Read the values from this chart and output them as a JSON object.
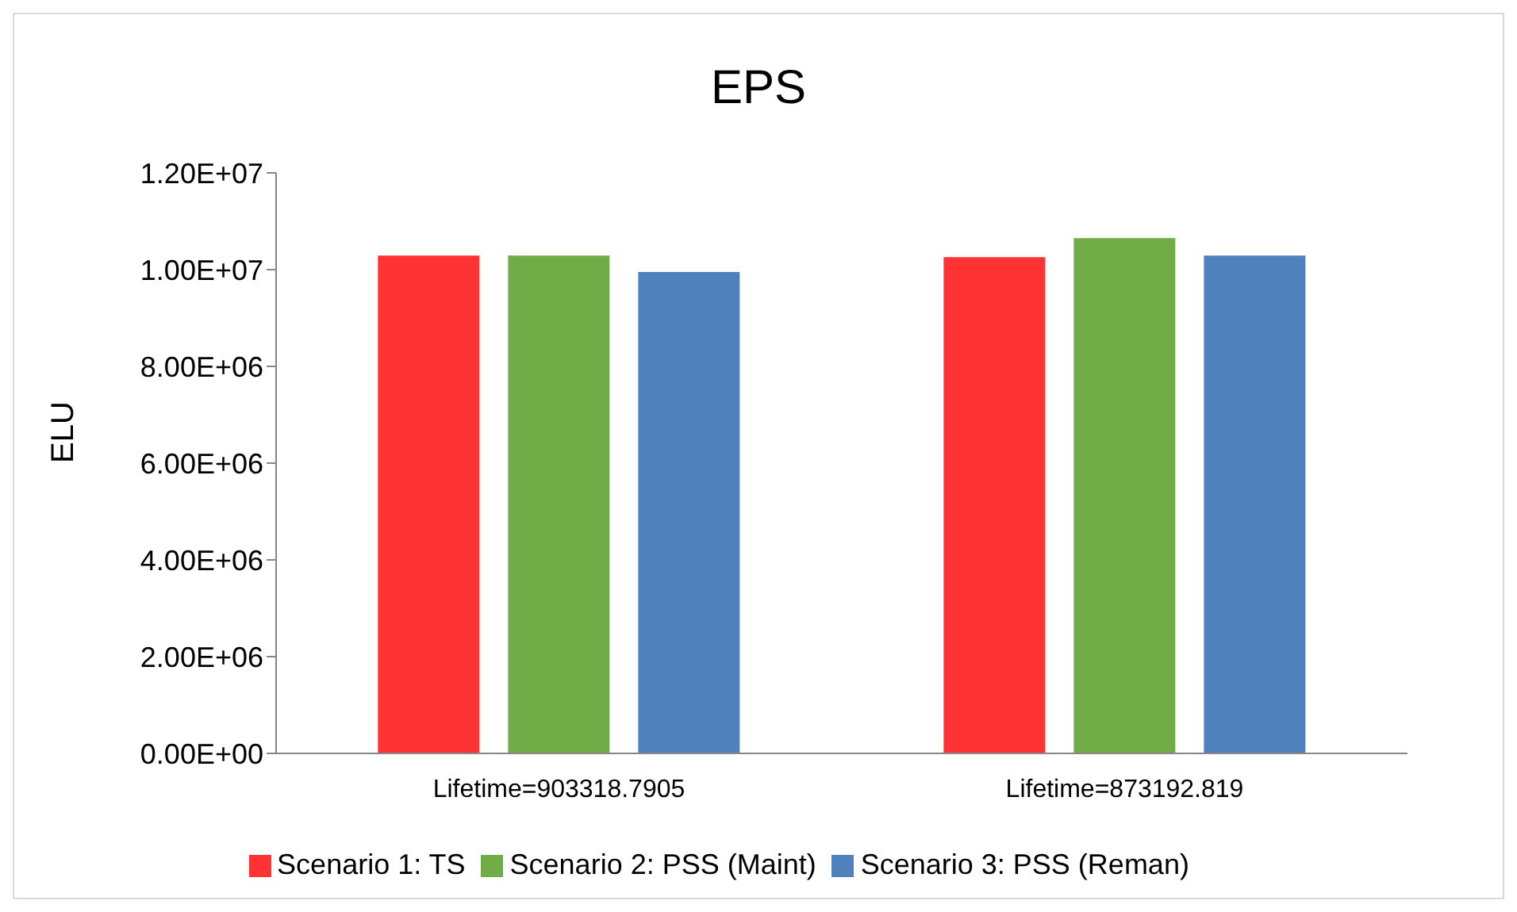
{
  "chart_data": {
    "type": "bar",
    "title": "EPS",
    "ylabel": "ELU",
    "categories": [
      "Lifetime=903318.7905",
      "Lifetime=873192.819"
    ],
    "series": [
      {
        "name": "Scenario 1: TS",
        "color": "#ff3333",
        "values": [
          10290000,
          10260000
        ]
      },
      {
        "name": "Scenario 2: PSS (Maint)",
        "color": "#70ad47",
        "values": [
          10290000,
          10650000
        ]
      },
      {
        "name": "Scenario 3: PSS (Reman)",
        "color": "#4f81bd",
        "values": [
          9950000,
          10290000
        ]
      }
    ],
    "ylim": [
      0,
      12000000
    ],
    "yticks": [
      {
        "value": 0,
        "label": "0.00E+00"
      },
      {
        "value": 2000000,
        "label": "2.00E+06"
      },
      {
        "value": 4000000,
        "label": "4.00E+06"
      },
      {
        "value": 6000000,
        "label": "6.00E+06"
      },
      {
        "value": 8000000,
        "label": "8.00E+06"
      },
      {
        "value": 10000000,
        "label": "1.00E+07"
      },
      {
        "value": 12000000,
        "label": "1.20E+07"
      }
    ],
    "grid": false,
    "legend": "bottom"
  }
}
